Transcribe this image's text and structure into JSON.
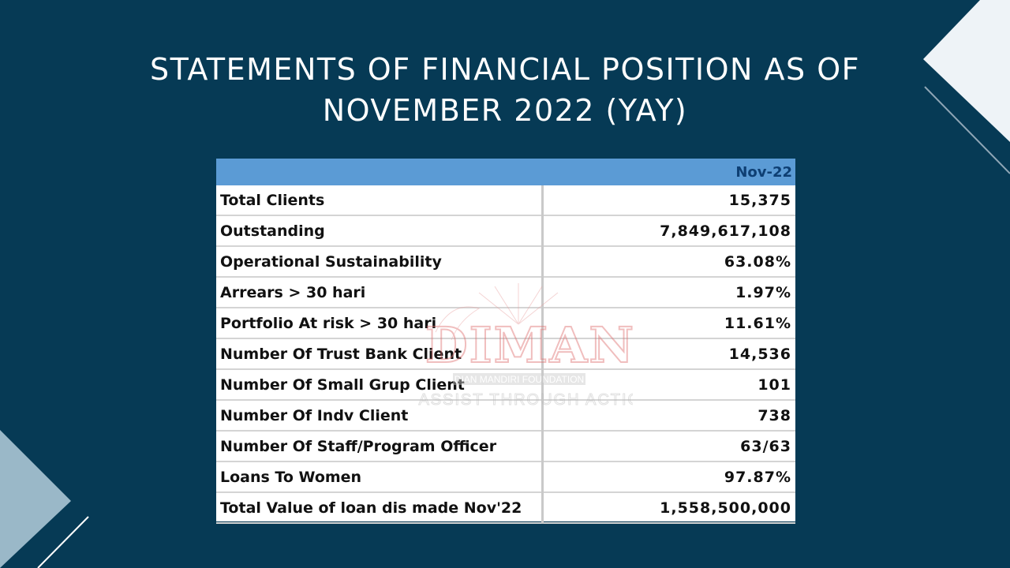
{
  "slide": {
    "title": "STATEMENTS OF FINANCIAL POSITION AS OF NOVEMBER 2022 (YAY)"
  },
  "table": {
    "column_header": "Nov-22",
    "rows": [
      {
        "label": "Total Clients",
        "value": "15,375"
      },
      {
        "label": "Outstanding",
        "value": "7,849,617,108"
      },
      {
        "label": "Operational Sustainability",
        "value": "63.08%"
      },
      {
        "label": "Arrears > 30 hari",
        "value": "1.97%"
      },
      {
        "label": "Portfolio At risk > 30 hari",
        "value": "11.61%"
      },
      {
        "label": "Number Of Trust Bank Client",
        "value": "14,536"
      },
      {
        "label": "Number Of Small Grup Client",
        "value": "101"
      },
      {
        "label": "Number Of Indv Client",
        "value": "738"
      },
      {
        "label": "Number Of Staff/Program Officer",
        "value": "63/63"
      },
      {
        "label": "Loans To Women",
        "value": "97.87%"
      },
      {
        "label": "Total Value of loan dis made Nov'22",
        "value": "1,558,500,000"
      }
    ]
  },
  "watermark": {
    "logo_text": "DIMAN",
    "org_name": "DIAN MANDIRI FOUNDATION",
    "tagline": "ASSIST THROUGH ACTION"
  },
  "colors": {
    "background": "#063a55",
    "header_fill": "#5b9bd5",
    "header_text": "#0e3f73",
    "watermark": "#e07070"
  }
}
